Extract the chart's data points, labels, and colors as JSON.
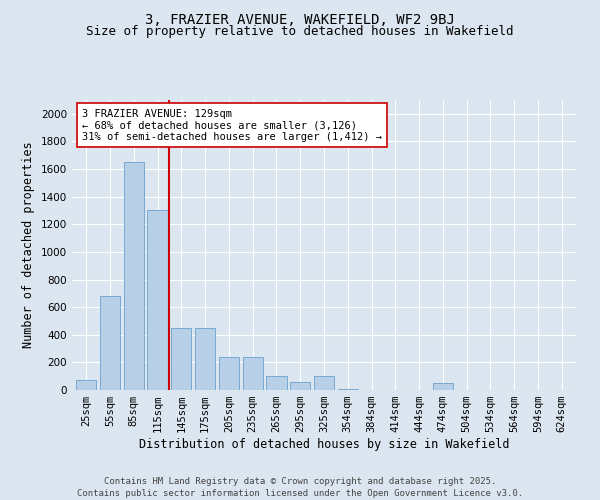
{
  "title_line1": "3, FRAZIER AVENUE, WAKEFIELD, WF2 9BJ",
  "title_line2": "Size of property relative to detached houses in Wakefield",
  "xlabel": "Distribution of detached houses by size in Wakefield",
  "ylabel": "Number of detached properties",
  "categories": [
    "25sqm",
    "55sqm",
    "85sqm",
    "115sqm",
    "145sqm",
    "175sqm",
    "205sqm",
    "235sqm",
    "265sqm",
    "295sqm",
    "325sqm",
    "354sqm",
    "384sqm",
    "414sqm",
    "444sqm",
    "474sqm",
    "504sqm",
    "534sqm",
    "564sqm",
    "594sqm",
    "624sqm"
  ],
  "values": [
    70,
    680,
    1650,
    1300,
    450,
    450,
    240,
    240,
    100,
    60,
    100,
    5,
    0,
    0,
    0,
    50,
    0,
    0,
    0,
    0,
    0
  ],
  "bar_color": "#b8cfe8",
  "bar_edge_color": "#6a9fcc",
  "property_line_color": "#cc0000",
  "annotation_text": "3 FRAZIER AVENUE: 129sqm\n← 68% of detached houses are smaller (3,126)\n31% of semi-detached houses are larger (1,412) →",
  "annotation_box_color": "#ffffff",
  "annotation_box_edge_color": "#cc0000",
  "ylim": [
    0,
    2100
  ],
  "yticks": [
    0,
    200,
    400,
    600,
    800,
    1000,
    1200,
    1400,
    1600,
    1800,
    2000
  ],
  "background_color": "#dce6f0",
  "grid_color": "#ffffff",
  "footer_line1": "Contains HM Land Registry data © Crown copyright and database right 2025.",
  "footer_line2": "Contains public sector information licensed under the Open Government Licence v3.0.",
  "title_fontsize": 10,
  "subtitle_fontsize": 9,
  "axis_label_fontsize": 8.5,
  "tick_fontsize": 7.5,
  "annotation_fontsize": 7.5,
  "footer_fontsize": 6.5
}
